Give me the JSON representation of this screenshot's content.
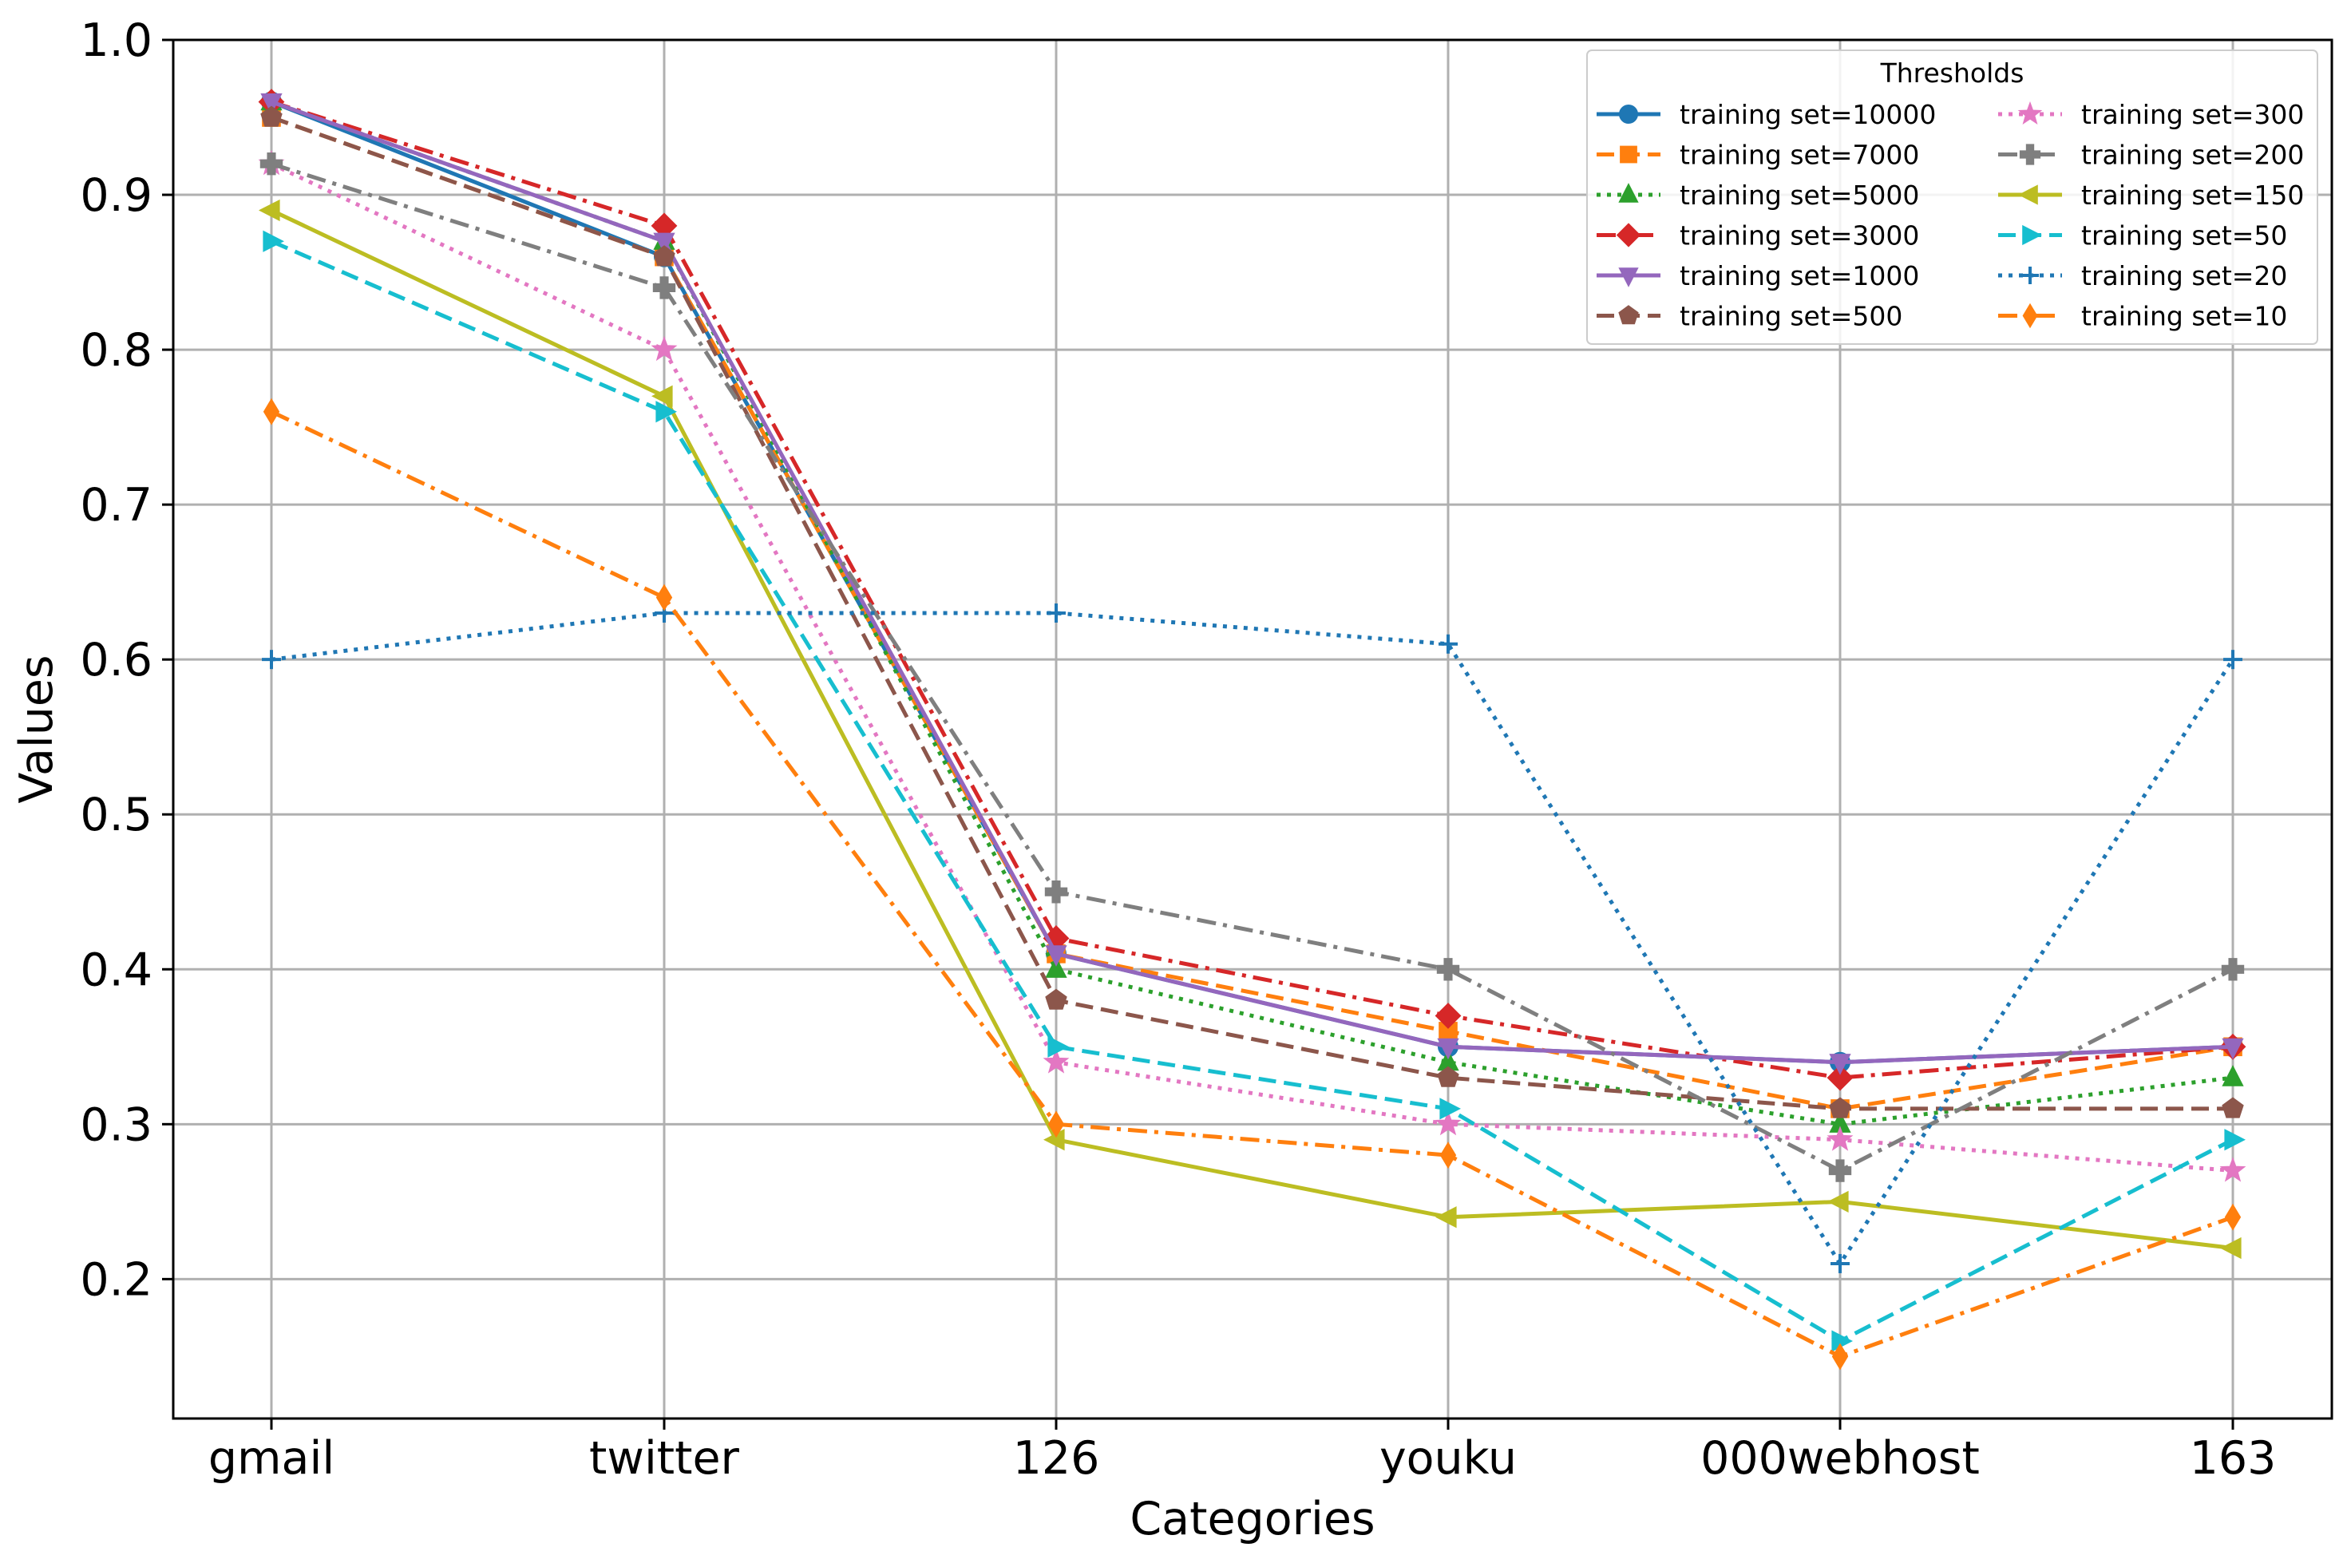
{
  "chart_data": {
    "type": "line",
    "title": "",
    "xlabel": "Categories",
    "ylabel": "Values",
    "categories": [
      "gmail",
      "twitter",
      "126",
      "youku",
      "000webhost",
      "163"
    ],
    "ylim": [
      0.11,
      1.0
    ],
    "yticks": [
      0.2,
      0.3,
      0.4,
      0.5,
      0.6,
      0.7,
      0.8,
      0.9,
      1.0
    ],
    "ytick_labels": [
      "0.2",
      "0.3",
      "0.4",
      "0.5",
      "0.6",
      "0.7",
      "0.8",
      "0.9",
      "1.0"
    ],
    "grid": true,
    "legend": {
      "title": "Thresholds",
      "placement": "top-right",
      "columns": 2
    },
    "series": [
      {
        "name": "training set=10000",
        "color": "#1f77b4",
        "dash": "solid",
        "marker": "circle",
        "values": [
          0.96,
          0.86,
          0.41,
          0.35,
          0.34,
          0.35
        ]
      },
      {
        "name": "training set=7000",
        "color": "#ff7f0e",
        "dash": "dashed",
        "marker": "square",
        "values": [
          0.95,
          0.86,
          0.41,
          0.36,
          0.31,
          0.35
        ]
      },
      {
        "name": "training set=5000",
        "color": "#2ca02c",
        "dash": "dotted",
        "marker": "triangle-up",
        "values": [
          0.96,
          0.87,
          0.4,
          0.34,
          0.3,
          0.33
        ]
      },
      {
        "name": "training set=3000",
        "color": "#d62728",
        "dash": "dashdot",
        "marker": "diamond",
        "values": [
          0.96,
          0.88,
          0.42,
          0.37,
          0.33,
          0.35
        ]
      },
      {
        "name": "training set=1000",
        "color": "#9467bd",
        "dash": "solid",
        "marker": "triangle-down",
        "values": [
          0.96,
          0.87,
          0.41,
          0.35,
          0.34,
          0.35
        ]
      },
      {
        "name": "training set=500",
        "color": "#8c564b",
        "dash": "dashed",
        "marker": "pentagon",
        "values": [
          0.95,
          0.86,
          0.38,
          0.33,
          0.31,
          0.31
        ]
      },
      {
        "name": "training set=300",
        "color": "#e377c2",
        "dash": "dotted",
        "marker": "star",
        "values": [
          0.92,
          0.8,
          0.34,
          0.3,
          0.29,
          0.27
        ]
      },
      {
        "name": "training set=200",
        "color": "#7f7f7f",
        "dash": "dashdot",
        "marker": "plus-filled",
        "values": [
          0.92,
          0.84,
          0.45,
          0.4,
          0.27,
          0.4
        ]
      },
      {
        "name": "training set=150",
        "color": "#bcbd22",
        "dash": "solid",
        "marker": "triangle-left",
        "values": [
          0.89,
          0.77,
          0.29,
          0.24,
          0.25,
          0.22
        ]
      },
      {
        "name": "training set=50",
        "color": "#17becf",
        "dash": "dashed",
        "marker": "triangle-right",
        "values": [
          0.87,
          0.76,
          0.35,
          0.31,
          0.16,
          0.29
        ]
      },
      {
        "name": "training set=20",
        "color": "#1f77b4",
        "dash": "dotted",
        "marker": "plus",
        "values": [
          0.6,
          0.63,
          0.63,
          0.61,
          0.21,
          0.6
        ]
      },
      {
        "name": "training set=10",
        "color": "#ff7f0e",
        "dash": "dashdot",
        "marker": "thin-diamond",
        "values": [
          0.76,
          0.64,
          0.3,
          0.28,
          0.15,
          0.24
        ]
      }
    ]
  }
}
